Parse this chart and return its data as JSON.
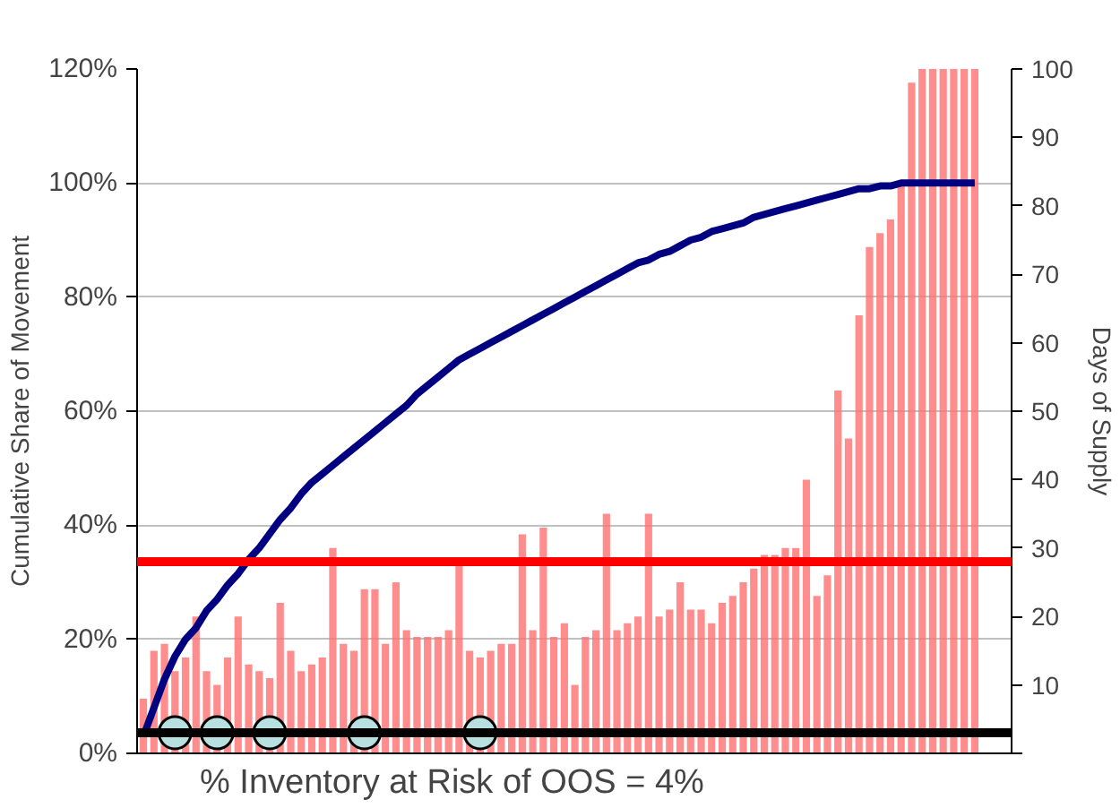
{
  "chart_data": {
    "type": "bar",
    "ylabel": "Cumulative Share of Movement",
    "y2label": "Days of Supply",
    "annotations": [
      "% Inventory at Risk of OOS =  4%"
    ],
    "categories": [
      null,
      null,
      null,
      null,
      null,
      null,
      null,
      null,
      null,
      null,
      null,
      null,
      null,
      null,
      null,
      null,
      null,
      null,
      null,
      null,
      null,
      null,
      null,
      null,
      null,
      null,
      null,
      null,
      null,
      null,
      null,
      null,
      null,
      null,
      null,
      null,
      null,
      null,
      null,
      null,
      null,
      null,
      null,
      null,
      null,
      null,
      null,
      null,
      null,
      null,
      null,
      null,
      null,
      null,
      null,
      null,
      null,
      null,
      null,
      null,
      null,
      null,
      null,
      null,
      null,
      null,
      null,
      null,
      null,
      null,
      null,
      null,
      null,
      null,
      null,
      null,
      null,
      null,
      null,
      null
    ],
    "series": [
      {
        "axis": "y2",
        "color": "#ff7070",
        "values": [
          8,
          15,
          16,
          12,
          14,
          20,
          12,
          10,
          14,
          20,
          13,
          12,
          11,
          22,
          15,
          12,
          13,
          14,
          30,
          16,
          15,
          24,
          24,
          16,
          25,
          18,
          17,
          17,
          17,
          18,
          28,
          15,
          14,
          15,
          16,
          16,
          32,
          18,
          33,
          17,
          19,
          10,
          17,
          18,
          35,
          18,
          19,
          20,
          35,
          20,
          21,
          25,
          21,
          21,
          19,
          22,
          23,
          25,
          27,
          29,
          29,
          30,
          30,
          40,
          23,
          26,
          53,
          46,
          64,
          74,
          76,
          78,
          83,
          98,
          100,
          100,
          100,
          100,
          100,
          100
        ]
      },
      {
        "type": "line",
        "color": "#000080",
        "values": [
          3,
          8,
          13,
          17,
          20,
          22,
          25,
          27,
          29.5,
          31.5,
          34,
          36,
          38.5,
          41,
          43,
          45.5,
          47.5,
          49,
          50.5,
          52,
          53.5,
          55,
          56.5,
          58,
          59.5,
          61,
          63,
          64.5,
          66,
          67.5,
          69,
          70,
          71,
          72,
          73,
          74,
          75,
          76,
          77,
          78,
          79,
          80,
          81,
          82,
          83,
          84,
          85,
          86,
          86.5,
          87.5,
          88,
          89,
          90,
          90.5,
          91.5,
          92,
          92.5,
          93,
          94,
          94.5,
          95,
          95.5,
          96,
          96.5,
          97,
          97.5,
          98,
          98.5,
          99,
          99,
          99.5,
          99.5,
          100,
          100,
          100,
          100,
          100,
          100,
          100,
          100
        ]
      },
      {
        "type": "scatter",
        "axis": "y2",
        "color": "#b8e0e0",
        "marker": "circle",
        "values": [
          null,
          null,
          null,
          3,
          null,
          null,
          null,
          3,
          null,
          null,
          null,
          null,
          3,
          null,
          null,
          null,
          null,
          null,
          null,
          null,
          null,
          3,
          null,
          null,
          null,
          null,
          null,
          null,
          null,
          null,
          null,
          null,
          3,
          null,
          null,
          null,
          null,
          null,
          null,
          null,
          null,
          null,
          null,
          null,
          null,
          null,
          null,
          null,
          null,
          null,
          null,
          null,
          null,
          null,
          null,
          null,
          null,
          null,
          null,
          null,
          null,
          null,
          null,
          null,
          null,
          null,
          null,
          null,
          null,
          null,
          null,
          null,
          null,
          null,
          null,
          null,
          null,
          null,
          null,
          null
        ]
      }
    ],
    "ylim": [
      0,
      120
    ],
    "yticks": [
      {
        "value": 0,
        "label": "0%"
      },
      {
        "value": 20,
        "label": "20%"
      },
      {
        "value": 40,
        "label": "40%"
      },
      {
        "value": 60,
        "label": "60%"
      },
      {
        "value": 80,
        "label": "80%"
      },
      {
        "value": 100,
        "label": "100%"
      },
      {
        "value": 120,
        "label": "120%"
      }
    ],
    "y2lim": [
      0,
      100
    ],
    "y2ticks": [
      {
        "value": 0,
        "label": null
      },
      10,
      20,
      30,
      40,
      50,
      60,
      70,
      80,
      90,
      100
    ],
    "ref_lines": [
      {
        "axis": "y2",
        "value": 28,
        "color": "#ff0000"
      },
      {
        "axis": "y2",
        "value": 3,
        "color": "#000000"
      }
    ],
    "grid": "y"
  }
}
